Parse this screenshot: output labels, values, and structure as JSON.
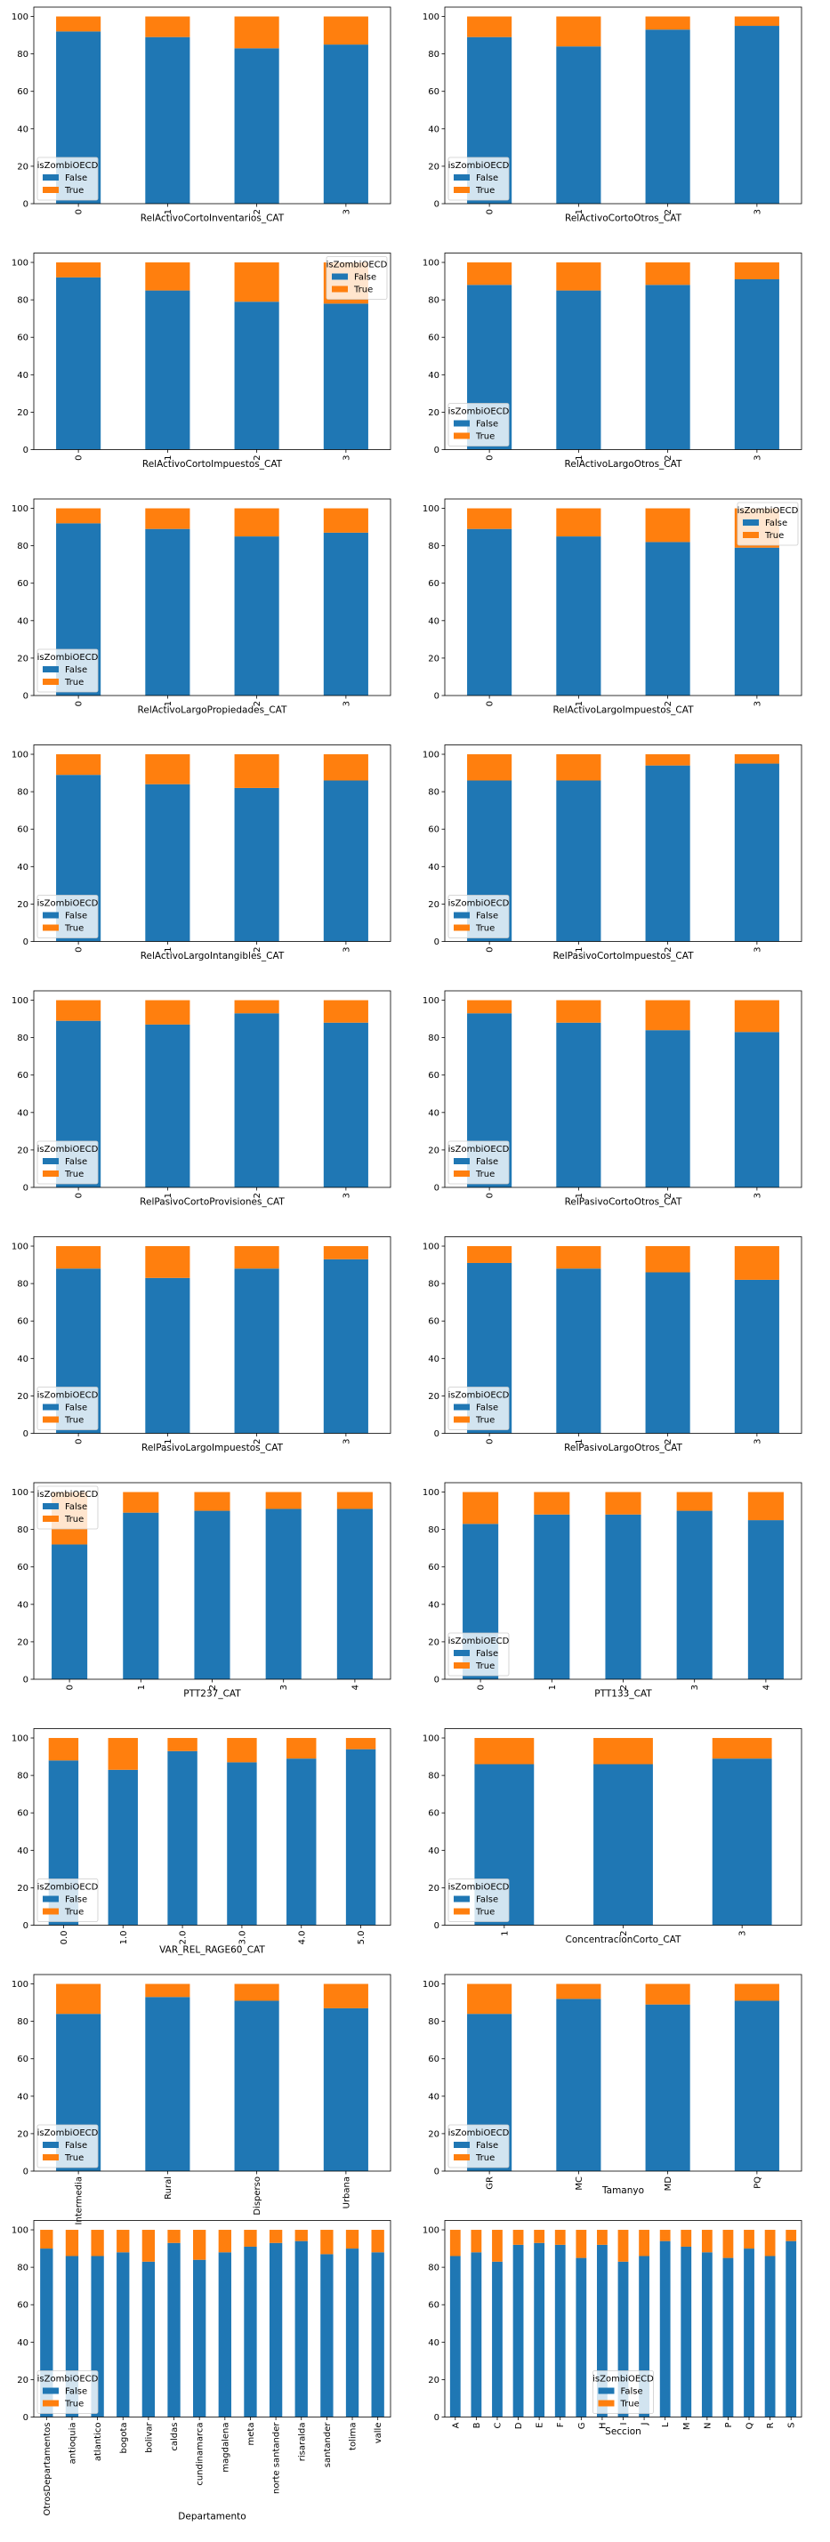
{
  "legend_title": "isZombiOECD",
  "colors": {
    "False": "#1f77b4",
    "True": "#ff7f0e"
  },
  "ylim": [
    0,
    105
  ],
  "yticks": [
    0,
    20,
    40,
    60,
    80,
    100
  ],
  "chart_data": [
    {
      "type": "bar",
      "stacked": true,
      "xlabel": "RelActivoCortoInventarios_CAT",
      "categories": [
        "0",
        "1",
        "2",
        "3"
      ],
      "series": [
        {
          "name": "False",
          "values": [
            92,
            89,
            83,
            85
          ]
        },
        {
          "name": "True",
          "values": [
            8,
            11,
            17,
            15
          ]
        }
      ],
      "legend": "lower-left"
    },
    {
      "type": "bar",
      "stacked": true,
      "xlabel": "RelActivoCortoOtros_CAT",
      "categories": [
        "0",
        "1",
        "2",
        "3"
      ],
      "series": [
        {
          "name": "False",
          "values": [
            89,
            84,
            93,
            95
          ]
        },
        {
          "name": "True",
          "values": [
            11,
            16,
            7,
            5
          ]
        }
      ],
      "legend": "lower-left"
    },
    {
      "type": "bar",
      "stacked": true,
      "xlabel": "RelActivoCortoImpuestos_CAT",
      "categories": [
        "0",
        "1",
        "2",
        "3"
      ],
      "series": [
        {
          "name": "False",
          "values": [
            92,
            85,
            79,
            78
          ]
        },
        {
          "name": "True",
          "values": [
            8,
            15,
            21,
            22
          ]
        }
      ],
      "legend": "upper-right"
    },
    {
      "type": "bar",
      "stacked": true,
      "xlabel": "RelActivoLargoOtros_CAT",
      "categories": [
        "0",
        "1",
        "2",
        "3"
      ],
      "series": [
        {
          "name": "False",
          "values": [
            88,
            85,
            88,
            91
          ]
        },
        {
          "name": "True",
          "values": [
            12,
            15,
            12,
            9
          ]
        }
      ],
      "legend": "lower-left"
    },
    {
      "type": "bar",
      "stacked": true,
      "xlabel": "RelActivoLargoPropiedades_CAT",
      "categories": [
        "0",
        "1",
        "2",
        "3"
      ],
      "series": [
        {
          "name": "False",
          "values": [
            92,
            89,
            85,
            87
          ]
        },
        {
          "name": "True",
          "values": [
            8,
            11,
            15,
            13
          ]
        }
      ],
      "legend": "lower-left"
    },
    {
      "type": "bar",
      "stacked": true,
      "xlabel": "RelActivoLargoImpuestos_CAT",
      "categories": [
        "0",
        "1",
        "2",
        "3"
      ],
      "series": [
        {
          "name": "False",
          "values": [
            89,
            85,
            82,
            79
          ]
        },
        {
          "name": "True",
          "values": [
            11,
            15,
            18,
            21
          ]
        }
      ],
      "legend": "upper-right"
    },
    {
      "type": "bar",
      "stacked": true,
      "xlabel": "RelActivoLargoIntangibles_CAT",
      "categories": [
        "0",
        "1",
        "2",
        "3"
      ],
      "series": [
        {
          "name": "False",
          "values": [
            89,
            84,
            82,
            86
          ]
        },
        {
          "name": "True",
          "values": [
            11,
            16,
            18,
            14
          ]
        }
      ],
      "legend": "lower-left"
    },
    {
      "type": "bar",
      "stacked": true,
      "xlabel": "RelPasivoCortoImpuestos_CAT",
      "categories": [
        "0",
        "1",
        "2",
        "3"
      ],
      "series": [
        {
          "name": "False",
          "values": [
            86,
            86,
            94,
            95
          ]
        },
        {
          "name": "True",
          "values": [
            14,
            14,
            6,
            5
          ]
        }
      ],
      "legend": "lower-left"
    },
    {
      "type": "bar",
      "stacked": true,
      "xlabel": "RelPasivoCortoProvisiones_CAT",
      "categories": [
        "0",
        "1",
        "2",
        "3"
      ],
      "series": [
        {
          "name": "False",
          "values": [
            89,
            87,
            93,
            88
          ]
        },
        {
          "name": "True",
          "values": [
            11,
            13,
            7,
            12
          ]
        }
      ],
      "legend": "lower-left"
    },
    {
      "type": "bar",
      "stacked": true,
      "xlabel": "RelPasivoCortoOtros_CAT",
      "categories": [
        "0",
        "1",
        "2",
        "3"
      ],
      "series": [
        {
          "name": "False",
          "values": [
            93,
            88,
            84,
            83
          ]
        },
        {
          "name": "True",
          "values": [
            7,
            12,
            16,
            17
          ]
        }
      ],
      "legend": "lower-left"
    },
    {
      "type": "bar",
      "stacked": true,
      "xlabel": "RelPasivoLargoImpuestos_CAT",
      "categories": [
        "0",
        "1",
        "2",
        "3"
      ],
      "series": [
        {
          "name": "False",
          "values": [
            88,
            83,
            88,
            93
          ]
        },
        {
          "name": "True",
          "values": [
            12,
            17,
            12,
            7
          ]
        }
      ],
      "legend": "lower-left"
    },
    {
      "type": "bar",
      "stacked": true,
      "xlabel": "RelPasivoLargoOtros_CAT",
      "categories": [
        "0",
        "1",
        "2",
        "3"
      ],
      "series": [
        {
          "name": "False",
          "values": [
            91,
            88,
            86,
            82
          ]
        },
        {
          "name": "True",
          "values": [
            9,
            12,
            14,
            18
          ]
        }
      ],
      "legend": "lower-left"
    },
    {
      "type": "bar",
      "stacked": true,
      "xlabel": "PTT237_CAT",
      "categories": [
        "0",
        "1",
        "2",
        "3",
        "4"
      ],
      "series": [
        {
          "name": "False",
          "values": [
            72,
            89,
            90,
            91,
            91
          ]
        },
        {
          "name": "True",
          "values": [
            28,
            11,
            10,
            9,
            9
          ]
        }
      ],
      "legend": "upper-left"
    },
    {
      "type": "bar",
      "stacked": true,
      "xlabel": "PTT133_CAT",
      "categories": [
        "0",
        "1",
        "2",
        "3",
        "4"
      ],
      "series": [
        {
          "name": "False",
          "values": [
            83,
            88,
            88,
            90,
            85
          ]
        },
        {
          "name": "True",
          "values": [
            17,
            12,
            12,
            10,
            15
          ]
        }
      ],
      "legend": "lower-left"
    },
    {
      "type": "bar",
      "stacked": true,
      "xlabel": "VAR_REL_RAGE60_CAT",
      "categories": [
        "0.0",
        "1.0",
        "2.0",
        "3.0",
        "4.0",
        "5.0"
      ],
      "series": [
        {
          "name": "False",
          "values": [
            88,
            83,
            93,
            87,
            89,
            94
          ]
        },
        {
          "name": "True",
          "values": [
            12,
            17,
            7,
            13,
            11,
            6
          ]
        }
      ],
      "legend": "lower-left"
    },
    {
      "type": "bar",
      "stacked": true,
      "xlabel": "ConcentracionCorto_CAT",
      "categories": [
        "1",
        "2",
        "3"
      ],
      "series": [
        {
          "name": "False",
          "values": [
            86,
            86,
            89
          ]
        },
        {
          "name": "True",
          "values": [
            14,
            14,
            11
          ]
        }
      ],
      "legend": "lower-left"
    },
    {
      "type": "bar",
      "stacked": true,
      "xlabel": "",
      "categories": [
        "Intermedia",
        "Rural",
        "Disperso",
        "Urbana"
      ],
      "series": [
        {
          "name": "False",
          "values": [
            84,
            93,
            91,
            87
          ]
        },
        {
          "name": "True",
          "values": [
            16,
            7,
            9,
            13
          ]
        }
      ],
      "legend": "lower-left"
    },
    {
      "type": "bar",
      "stacked": true,
      "xlabel": "Tamanyo",
      "categories": [
        "GR",
        "MC",
        "MD",
        "PQ"
      ],
      "series": [
        {
          "name": "False",
          "values": [
            84,
            92,
            89,
            91
          ]
        },
        {
          "name": "True",
          "values": [
            16,
            8,
            11,
            9
          ]
        }
      ],
      "legend": "lower-left"
    },
    {
      "type": "bar",
      "stacked": true,
      "xlabel": "Departamento",
      "categories": [
        "OtrosDepartamentos",
        "antioquia",
        "atlantico",
        "bogota",
        "bolivar",
        "caldas",
        "cundinamarca",
        "magdalena",
        "meta",
        "norte santander",
        "risaralda",
        "santander",
        "tolima",
        "valle"
      ],
      "series": [
        {
          "name": "False",
          "values": [
            90,
            86,
            86,
            88,
            83,
            93,
            84,
            88,
            91,
            93,
            94,
            87,
            90,
            88
          ]
        },
        {
          "name": "True",
          "values": [
            10,
            14,
            14,
            12,
            17,
            7,
            16,
            12,
            9,
            7,
            6,
            13,
            10,
            12
          ]
        }
      ],
      "legend": "lower-left"
    },
    {
      "type": "bar",
      "stacked": true,
      "xlabel": "Seccion",
      "categories": [
        "A",
        "B",
        "C",
        "D",
        "E",
        "F",
        "G",
        "H",
        "I",
        "J",
        "L",
        "M",
        "N",
        "P",
        "Q",
        "R",
        "S"
      ],
      "series": [
        {
          "name": "False",
          "values": [
            86,
            88,
            83,
            92,
            93,
            92,
            85,
            92,
            83,
            86,
            94,
            91,
            88,
            85,
            90,
            86,
            94
          ]
        },
        {
          "name": "True",
          "values": [
            14,
            12,
            17,
            8,
            7,
            8,
            15,
            8,
            17,
            14,
            6,
            9,
            12,
            15,
            10,
            14,
            6
          ]
        }
      ],
      "legend": "lower-center"
    }
  ]
}
